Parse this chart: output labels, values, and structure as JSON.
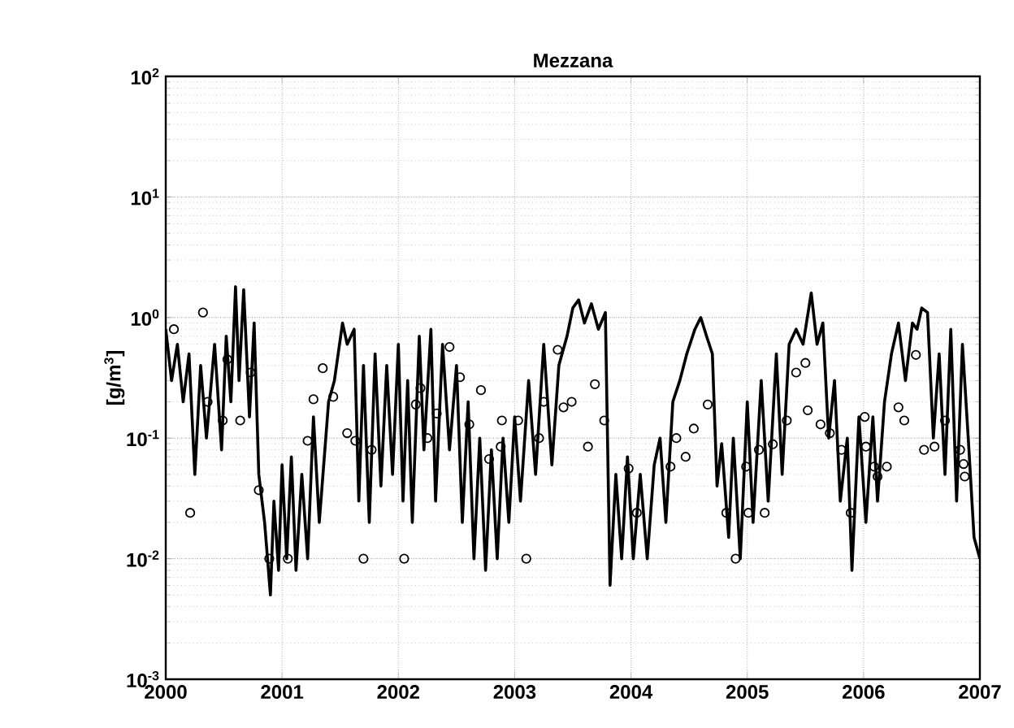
{
  "chart_data": {
    "type": "line",
    "title": "Mezzana",
    "ylabel": "[g/m$^{3}$]",
    "log": "y",
    "grid": true,
    "xlim": [
      2000,
      2007
    ],
    "xticks": [
      2000,
      2001,
      2002,
      2003,
      2004,
      2005,
      2006,
      2007
    ],
    "ylim": [
      0.001,
      100
    ],
    "yticks": [
      {
        "value": 0.001,
        "label": "10$^{-3}$"
      },
      {
        "value": 0.01,
        "label": "10$^{-2}$"
      },
      {
        "value": 0.1,
        "label": "10$^{-1}$"
      },
      {
        "value": 1,
        "label": "10$^{0}$"
      },
      {
        "value": 10,
        "label": "10$^{1}$"
      },
      {
        "value": 100,
        "label": "10$^{2}$"
      }
    ],
    "series": [
      {
        "color": "#000000",
        "marker": "none",
        "line_style": "solid",
        "x": [
          2000.0,
          2000.05,
          2000.1,
          2000.15,
          2000.2,
          2000.25,
          2000.3,
          2000.35,
          2000.42,
          2000.48,
          2000.52,
          2000.56,
          2000.6,
          2000.63,
          2000.67,
          2000.72,
          2000.76,
          2000.8,
          2000.85,
          2000.9,
          2000.93,
          2000.97,
          2001.0,
          2001.04,
          2001.08,
          2001.12,
          2001.17,
          2001.22,
          2001.27,
          2001.32,
          2001.4,
          2001.45,
          2001.52,
          2001.56,
          2001.62,
          2001.66,
          2001.7,
          2001.75,
          2001.8,
          2001.85,
          2001.9,
          2001.95,
          2002.0,
          2002.04,
          2002.08,
          2002.12,
          2002.18,
          2002.22,
          2002.28,
          2002.32,
          2002.38,
          2002.44,
          2002.5,
          2002.55,
          2002.6,
          2002.65,
          2002.7,
          2002.75,
          2002.8,
          2002.85,
          2002.9,
          2002.95,
          2003.0,
          2003.05,
          2003.12,
          2003.18,
          2003.25,
          2003.32,
          2003.38,
          2003.45,
          2003.5,
          2003.55,
          2003.6,
          2003.66,
          2003.72,
          2003.78,
          2003.82,
          2003.87,
          2003.92,
          2003.97,
          2004.02,
          2004.08,
          2004.14,
          2004.2,
          2004.25,
          2004.3,
          2004.36,
          2004.42,
          2004.48,
          2004.55,
          2004.6,
          2004.65,
          2004.7,
          2004.74,
          2004.78,
          2004.84,
          2004.88,
          2004.94,
          2005.0,
          2005.05,
          2005.12,
          2005.18,
          2005.25,
          2005.3,
          2005.36,
          2005.42,
          2005.48,
          2005.55,
          2005.6,
          2005.65,
          2005.7,
          2005.75,
          2005.8,
          2005.86,
          2005.9,
          2005.96,
          2006.02,
          2006.08,
          2006.12,
          2006.18,
          2006.24,
          2006.3,
          2006.36,
          2006.42,
          2006.46,
          2006.5,
          2006.55,
          2006.6,
          2006.65,
          2006.7,
          2006.75,
          2006.8,
          2006.85,
          2006.9,
          2006.95,
          2007.0
        ],
        "values": [
          0.8,
          0.3,
          0.6,
          0.2,
          0.5,
          0.05,
          0.4,
          0.1,
          0.6,
          0.08,
          0.7,
          0.2,
          1.8,
          0.3,
          1.7,
          0.15,
          0.9,
          0.05,
          0.02,
          0.005,
          0.03,
          0.008,
          0.06,
          0.01,
          0.07,
          0.008,
          0.05,
          0.01,
          0.15,
          0.02,
          0.2,
          0.3,
          0.9,
          0.6,
          0.8,
          0.03,
          0.4,
          0.02,
          0.5,
          0.04,
          0.4,
          0.05,
          0.6,
          0.03,
          0.3,
          0.02,
          0.7,
          0.08,
          0.8,
          0.03,
          0.6,
          0.08,
          0.4,
          0.02,
          0.2,
          0.01,
          0.1,
          0.008,
          0.08,
          0.01,
          0.1,
          0.02,
          0.15,
          0.03,
          0.3,
          0.05,
          0.6,
          0.06,
          0.4,
          0.7,
          1.2,
          1.4,
          0.9,
          1.3,
          0.8,
          1.1,
          0.006,
          0.05,
          0.01,
          0.07,
          0.01,
          0.05,
          0.01,
          0.06,
          0.1,
          0.02,
          0.2,
          0.3,
          0.5,
          0.8,
          1.0,
          0.7,
          0.5,
          0.04,
          0.09,
          0.015,
          0.1,
          0.01,
          0.2,
          0.02,
          0.3,
          0.03,
          0.5,
          0.05,
          0.6,
          0.8,
          0.6,
          1.6,
          0.6,
          0.9,
          0.1,
          0.3,
          0.03,
          0.1,
          0.008,
          0.15,
          0.02,
          0.15,
          0.03,
          0.2,
          0.5,
          0.9,
          0.3,
          0.9,
          0.8,
          1.2,
          1.1,
          0.1,
          0.5,
          0.05,
          0.8,
          0.03,
          0.6,
          0.1,
          0.015,
          0.01
        ]
      },
      {
        "type": "scatter",
        "color": "#000000",
        "marker": "circle",
        "x": [
          2000.07,
          2000.21,
          2000.32,
          2000.36,
          2000.49,
          2000.53,
          2000.64,
          2000.73,
          2000.8,
          2000.89,
          2001.05,
          2001.22,
          2001.27,
          2001.35,
          2001.44,
          2001.56,
          2001.63,
          2001.7,
          2001.77,
          2002.05,
          2002.15,
          2002.19,
          2002.25,
          2002.33,
          2002.44,
          2002.53,
          2002.61,
          2002.71,
          2002.78,
          2002.88,
          2002.89,
          2003.03,
          2003.1,
          2003.21,
          2003.25,
          2003.37,
          2003.42,
          2003.49,
          2003.63,
          2003.69,
          2003.77,
          2003.98,
          2004.05,
          2004.34,
          2004.39,
          2004.47,
          2004.54,
          2004.66,
          2004.82,
          2004.9,
          2004.99,
          2005.01,
          2005.1,
          2005.15,
          2005.22,
          2005.34,
          2005.42,
          2005.5,
          2005.52,
          2005.63,
          2005.71,
          2005.81,
          2005.89,
          2006.01,
          2006.02,
          2006.09,
          2006.12,
          2006.2,
          2006.3,
          2006.35,
          2006.45,
          2006.52,
          2006.61,
          2006.7,
          2006.83,
          2006.86,
          2006.87
        ],
        "values": [
          0.8,
          0.024,
          1.1,
          0.2,
          0.14,
          0.45,
          0.14,
          0.35,
          0.037,
          0.01,
          0.01,
          0.095,
          0.21,
          0.38,
          0.22,
          0.11,
          0.095,
          0.01,
          0.08,
          0.01,
          0.19,
          0.26,
          0.1,
          0.16,
          0.57,
          0.32,
          0.13,
          0.25,
          0.067,
          0.085,
          0.14,
          0.14,
          0.01,
          0.1,
          0.2,
          0.54,
          0.18,
          0.2,
          0.085,
          0.28,
          0.14,
          0.056,
          0.024,
          0.058,
          0.1,
          0.07,
          0.12,
          0.19,
          0.024,
          0.01,
          0.058,
          0.024,
          0.08,
          0.024,
          0.089,
          0.14,
          0.35,
          0.42,
          0.17,
          0.13,
          0.11,
          0.08,
          0.024,
          0.15,
          0.085,
          0.058,
          0.048,
          0.058,
          0.18,
          0.14,
          0.49,
          0.08,
          0.085,
          0.14,
          0.08,
          0.061,
          0.048
        ]
      }
    ]
  }
}
